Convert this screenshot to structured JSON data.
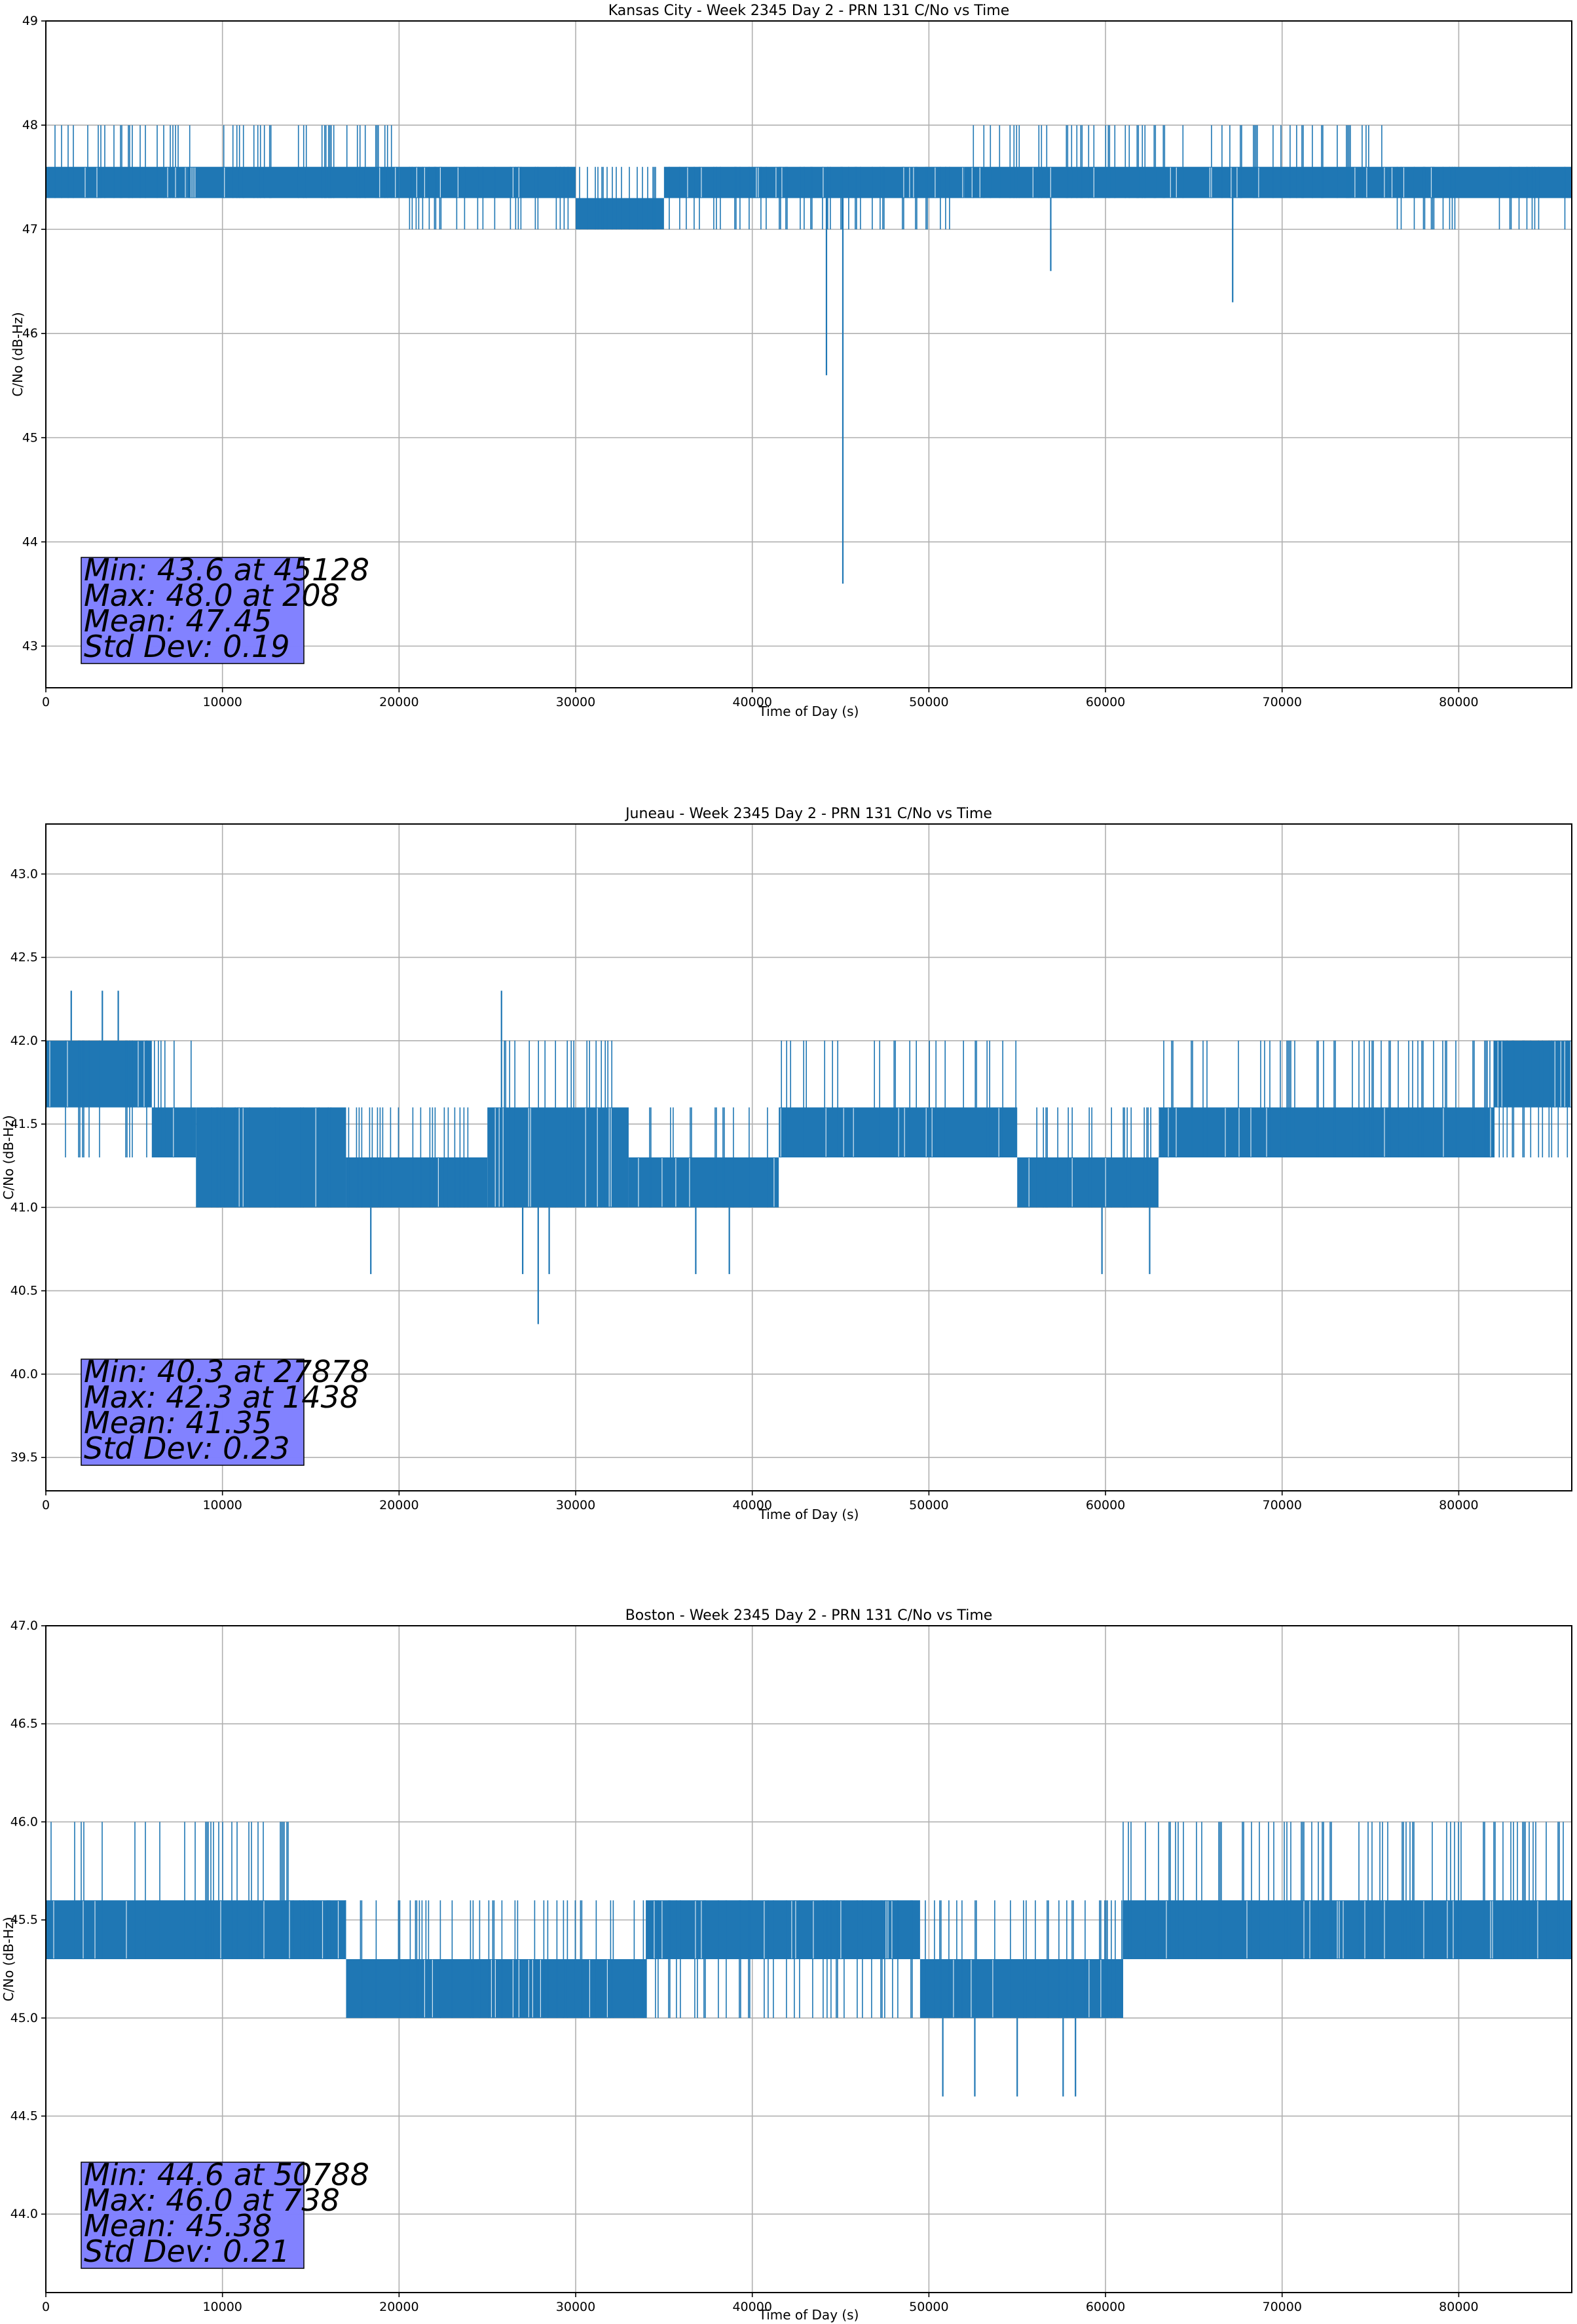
{
  "chart_data": [
    {
      "type": "line",
      "title": "Kansas City - Week 2345 Day 2 - PRN 131 C/No vs Time",
      "xlabel": "Time of Day (s)",
      "ylabel": "C/No (dB-Hz)",
      "xlim": [
        0,
        86400
      ],
      "ylim": [
        42.6,
        49
      ],
      "xticks": [
        0,
        10000,
        20000,
        30000,
        40000,
        50000,
        60000,
        70000,
        80000
      ],
      "yticks": [
        43,
        44,
        45,
        46,
        47,
        48,
        49
      ],
      "ytick_decimals": 0,
      "grid": true,
      "series_color": "#1f77b4",
      "segments": [
        {
          "start": 0,
          "end": 8000,
          "low": 47.3,
          "high": 47.6,
          "spike_to": 48.0
        },
        {
          "start": 8000,
          "end": 20000,
          "low": 47.3,
          "high": 47.6,
          "spike_to": 48.0
        },
        {
          "start": 20000,
          "end": 30000,
          "low": 47.3,
          "high": 47.6,
          "spike_to": 47.0
        },
        {
          "start": 30000,
          "end": 35000,
          "low": 47.0,
          "high": 47.3,
          "spike_to": 47.6
        },
        {
          "start": 35000,
          "end": 52000,
          "low": 47.3,
          "high": 47.6,
          "spike_to": 47.0
        },
        {
          "start": 52000,
          "end": 66000,
          "low": 47.3,
          "high": 47.6,
          "spike_to": 48.0
        },
        {
          "start": 66000,
          "end": 76000,
          "low": 47.3,
          "high": 47.6,
          "spike_to": 48.0
        },
        {
          "start": 76000,
          "end": 86400,
          "low": 47.3,
          "high": 47.6,
          "spike_to": 47.0
        }
      ],
      "dips": [
        [
          44200,
          45.6
        ],
        [
          45128,
          43.6
        ],
        [
          56900,
          46.6
        ],
        [
          67200,
          46.3
        ]
      ],
      "stats": {
        "min": "Min: 43.6 at 45128",
        "max": "Max: 48.0 at 208",
        "mean": "Mean: 47.45",
        "std": "Std Dev: 0.19"
      },
      "stats_box_color": "#8080ff"
    },
    {
      "type": "line",
      "title": "Juneau - Week 2345 Day 2 - PRN 131 C/No vs Time",
      "xlabel": "Time of Day (s)",
      "ylabel": "C/No (dB-Hz)",
      "xlim": [
        0,
        86400
      ],
      "ylim": [
        39.3,
        43.3
      ],
      "xticks": [
        0,
        10000,
        20000,
        30000,
        40000,
        50000,
        60000,
        70000,
        80000
      ],
      "yticks": [
        39.5,
        40.0,
        40.5,
        41.0,
        41.5,
        42.0,
        42.5,
        43.0
      ],
      "ytick_decimals": 1,
      "grid": true,
      "series_color": "#1f77b4",
      "segments": [
        {
          "start": 0,
          "end": 6000,
          "low": 41.6,
          "high": 42.0,
          "spike_to": 41.3
        },
        {
          "start": 6000,
          "end": 8500,
          "low": 41.3,
          "high": 41.6,
          "spike_to": 42.0
        },
        {
          "start": 8500,
          "end": 17000,
          "low": 41.0,
          "high": 41.6,
          "spike_to": 41.0
        },
        {
          "start": 17000,
          "end": 25000,
          "low": 41.0,
          "high": 41.3,
          "spike_to": 41.6
        },
        {
          "start": 25000,
          "end": 33000,
          "low": 41.0,
          "high": 41.6,
          "spike_to": 42.0
        },
        {
          "start": 33000,
          "end": 41500,
          "low": 41.0,
          "high": 41.3,
          "spike_to": 41.6
        },
        {
          "start": 41500,
          "end": 55000,
          "low": 41.3,
          "high": 41.6,
          "spike_to": 42.0
        },
        {
          "start": 55000,
          "end": 63000,
          "low": 41.0,
          "high": 41.3,
          "spike_to": 41.6
        },
        {
          "start": 63000,
          "end": 82000,
          "low": 41.3,
          "high": 41.6,
          "spike_to": 42.0
        },
        {
          "start": 82000,
          "end": 86400,
          "low": 41.6,
          "high": 42.0,
          "spike_to": 41.3
        }
      ],
      "dips": [
        [
          18400,
          40.6
        ],
        [
          27000,
          40.6
        ],
        [
          27878,
          40.3
        ],
        [
          28500,
          40.6
        ],
        [
          36800,
          40.6
        ],
        [
          38700,
          40.6
        ],
        [
          59800,
          40.6
        ],
        [
          62500,
          40.6
        ]
      ],
      "peaks": [
        [
          1438,
          42.3
        ],
        [
          3200,
          42.3
        ],
        [
          4100,
          42.3
        ],
        [
          25800,
          42.3
        ]
      ],
      "stats": {
        "min": "Min: 40.3 at 27878",
        "max": "Max: 42.3 at 1438",
        "mean": "Mean: 41.35",
        "std": "Std Dev: 0.23"
      },
      "stats_box_color": "#8080ff"
    },
    {
      "type": "line",
      "title": "Boston - Week 2345 Day 2 - PRN 131 C/No vs Time",
      "xlabel": "Time of Day (s)",
      "ylabel": "C/No (dB-Hz)",
      "xlim": [
        0,
        86400
      ],
      "ylim": [
        43.6,
        47.0
      ],
      "xticks": [
        0,
        10000,
        20000,
        30000,
        40000,
        50000,
        60000,
        70000,
        80000
      ],
      "yticks": [
        44.0,
        44.5,
        45.0,
        45.5,
        46.0,
        46.5,
        47.0
      ],
      "ytick_decimals": 1,
      "grid": true,
      "series_color": "#1f77b4",
      "segments": [
        {
          "start": 0,
          "end": 14000,
          "low": 45.3,
          "high": 45.6,
          "spike_to": 46.0
        },
        {
          "start": 14000,
          "end": 17000,
          "low": 45.3,
          "high": 45.6,
          "spike_to": 45.3
        },
        {
          "start": 17000,
          "end": 34000,
          "low": 45.0,
          "high": 45.3,
          "spike_to": 45.6
        },
        {
          "start": 34000,
          "end": 49500,
          "low": 45.3,
          "high": 45.6,
          "spike_to": 45.0
        },
        {
          "start": 49500,
          "end": 61000,
          "low": 45.0,
          "high": 45.3,
          "spike_to": 45.6
        },
        {
          "start": 61000,
          "end": 86400,
          "low": 45.3,
          "high": 45.6,
          "spike_to": 46.0
        }
      ],
      "dips": [
        [
          50788,
          44.6
        ],
        [
          52600,
          44.6
        ],
        [
          55000,
          44.6
        ],
        [
          57600,
          44.6
        ],
        [
          58300,
          44.6
        ]
      ],
      "stats": {
        "min": "Min: 44.6 at 50788",
        "max": "Max: 46.0 at 738",
        "mean": "Mean: 45.38",
        "std": "Std Dev: 0.21"
      },
      "stats_box_color": "#8080ff"
    }
  ]
}
